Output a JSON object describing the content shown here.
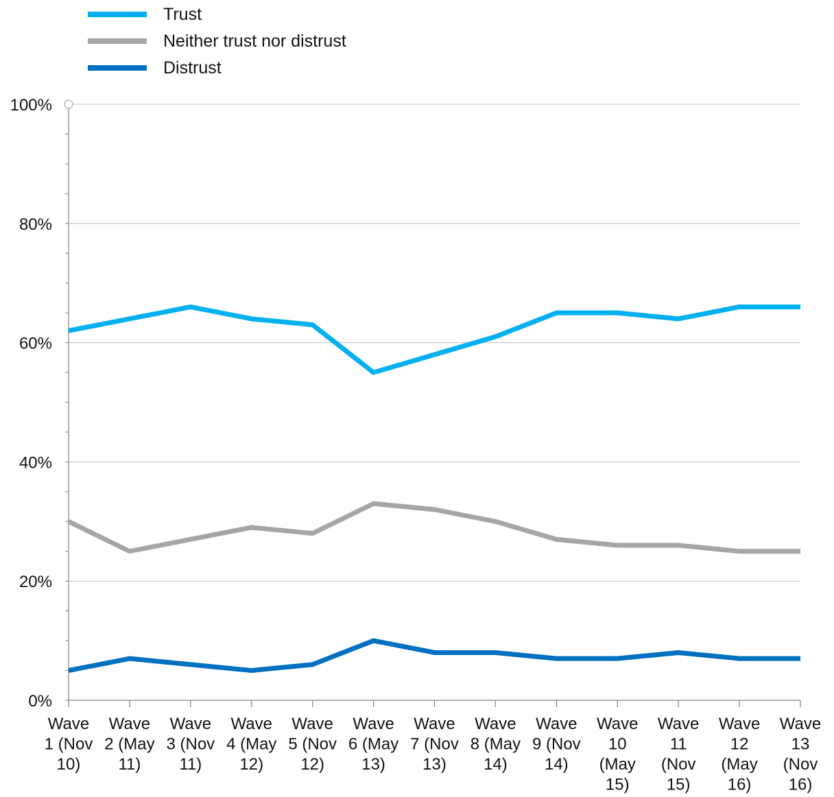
{
  "legend": [
    {
      "label": "Trust",
      "color": "#00b0f0"
    },
    {
      "label": "Neither trust nor distrust",
      "color": "#a6a6a6"
    },
    {
      "label": "Distrust",
      "color": "#0070c0"
    }
  ],
  "chart_data": {
    "type": "line",
    "categories": [
      [
        "Wave",
        "1 (Nov",
        "10)"
      ],
      [
        "Wave",
        "2 (May",
        "11)"
      ],
      [
        "Wave",
        "3 (Nov",
        "11)"
      ],
      [
        "Wave",
        "4 (May",
        "12)"
      ],
      [
        "Wave",
        "5 (Nov",
        "12)"
      ],
      [
        "Wave",
        "6 (May",
        "13)"
      ],
      [
        "Wave",
        "7 (Nov",
        "13)"
      ],
      [
        "Wave",
        "8 (May",
        "14)"
      ],
      [
        "Wave",
        "9 (Nov",
        "14)"
      ],
      [
        "Wave",
        "10",
        "(May",
        "15)"
      ],
      [
        "Wave",
        "11",
        "(Nov",
        "15)"
      ],
      [
        "Wave",
        "12",
        "(May",
        "16)"
      ],
      [
        "Wave",
        "13",
        "(Nov",
        "16)"
      ]
    ],
    "series": [
      {
        "name": "Trust",
        "color": "#00b0f0",
        "values": [
          62,
          64,
          66,
          64,
          63,
          55,
          58,
          61,
          65,
          65,
          64,
          66,
          66
        ]
      },
      {
        "name": "Neither trust nor distrust",
        "color": "#a6a6a6",
        "values": [
          30,
          25,
          27,
          29,
          28,
          33,
          32,
          30,
          27,
          26,
          26,
          25,
          25
        ]
      },
      {
        "name": "Distrust",
        "color": "#0070c0",
        "values": [
          5,
          7,
          6,
          5,
          6,
          10,
          8,
          8,
          7,
          7,
          8,
          7,
          7
        ]
      }
    ],
    "ylim": [
      0,
      100
    ],
    "yticks": [
      0,
      20,
      40,
      60,
      80,
      100
    ],
    "ytick_labels": [
      "0%",
      "20%",
      "40%",
      "60%",
      "80%",
      "100%"
    ],
    "grid": true,
    "legend_position": "top-left",
    "xlabel": "",
    "ylabel": ""
  }
}
